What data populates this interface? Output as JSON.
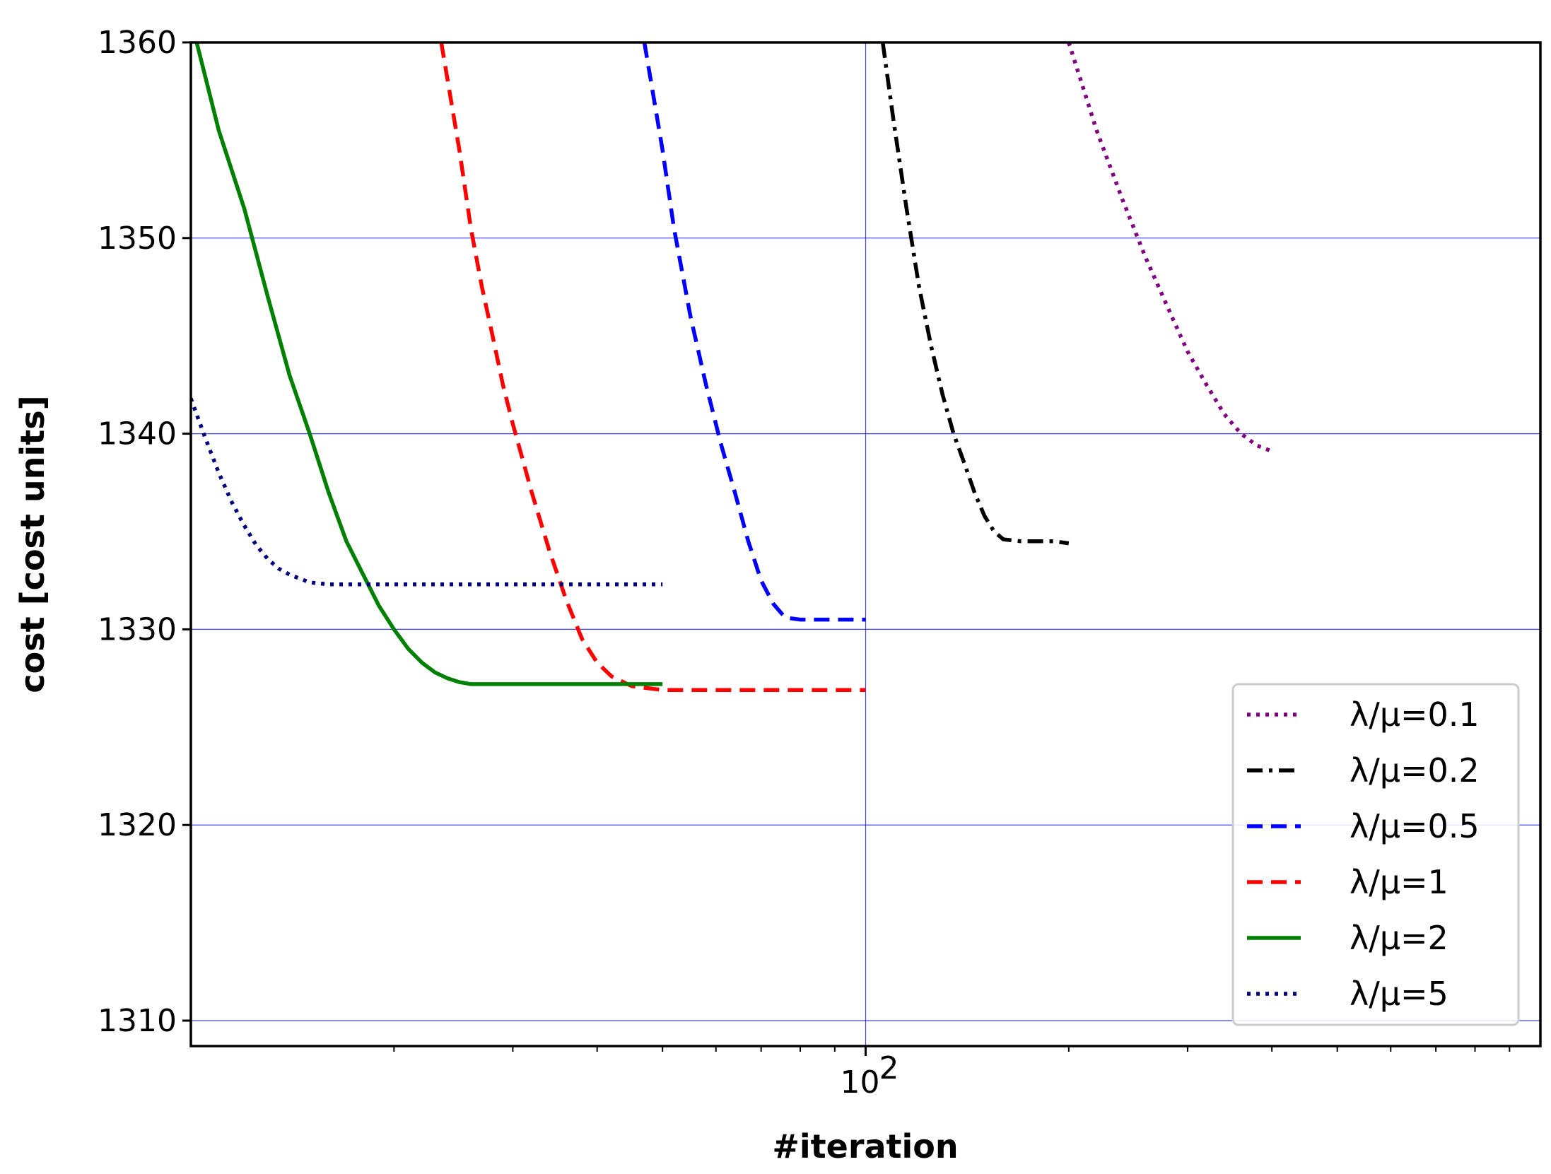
{
  "chart_data": {
    "type": "line",
    "title": "",
    "xlabel": "#iteration",
    "ylabel": "cost [cost units]",
    "xscale": "log",
    "xlim": [
      10,
      1000
    ],
    "ylim": [
      1308.7,
      1360
    ],
    "yticks": [
      1310,
      1320,
      1330,
      1340,
      1350,
      1360
    ],
    "xticks_major": [
      {
        "value": 100,
        "label": "10",
        "exponent": "2"
      }
    ],
    "xticks_minor": [
      20,
      30,
      40,
      50,
      60,
      70,
      80,
      90,
      200,
      300,
      400,
      500,
      600,
      700,
      800,
      900
    ],
    "grid": true,
    "grid_color": "#0000ff",
    "legend_position": "lower right",
    "series": [
      {
        "name": "λ/μ=0.1",
        "color": "#800080",
        "style": "dotted",
        "x": [
          200,
          220,
          240,
          260,
          280,
          300,
          320,
          340,
          360,
          380,
          400
        ],
        "y": [
          1360,
          1355.5,
          1352.0,
          1349.0,
          1346.5,
          1344.2,
          1342.5,
          1341.0,
          1340.0,
          1339.4,
          1339.1
        ]
      },
      {
        "name": "λ/μ=0.2",
        "color": "#000000",
        "style": "dashdot",
        "x": [
          106,
          110,
          115,
          120,
          125,
          130,
          135,
          140,
          145,
          150,
          155,
          160,
          170,
          180,
          190,
          200
        ],
        "y": [
          1360,
          1356.0,
          1351.5,
          1347.5,
          1344.5,
          1342.0,
          1340.0,
          1338.5,
          1337.0,
          1335.8,
          1335.0,
          1334.6,
          1334.5,
          1334.5,
          1334.5,
          1334.4
        ]
      },
      {
        "name": "λ/μ=0.5",
        "color": "#0000ff",
        "style": "dashed",
        "x": [
          47,
          50,
          52,
          55,
          58,
          61,
          64,
          67,
          70,
          73,
          76,
          80,
          85,
          90,
          100
        ],
        "y": [
          1360,
          1354.5,
          1350.5,
          1346.0,
          1342.5,
          1339.5,
          1337.0,
          1334.5,
          1332.5,
          1331.3,
          1330.6,
          1330.5,
          1330.5,
          1330.5,
          1330.5
        ]
      },
      {
        "name": "λ/μ=1",
        "color": "#ff0000",
        "style": "dashed",
        "x": [
          23.5,
          25,
          26,
          27,
          28,
          29,
          30,
          32,
          34,
          36,
          38,
          40,
          42,
          45,
          50,
          60,
          70,
          80,
          100
        ],
        "y": [
          1360,
          1354.5,
          1350.5,
          1347.5,
          1345.0,
          1342.5,
          1340.5,
          1337.0,
          1334.0,
          1331.5,
          1329.5,
          1328.3,
          1327.6,
          1327.1,
          1326.9,
          1326.9,
          1326.9,
          1326.9,
          1326.9
        ]
      },
      {
        "name": "λ/μ=2",
        "color": "#008000",
        "style": "solid",
        "x": [
          10.2,
          11,
          12,
          13,
          14,
          15,
          16,
          17,
          18,
          19,
          20,
          21,
          22,
          23,
          24,
          25,
          26,
          27,
          28,
          30,
          32,
          35,
          40,
          45,
          50
        ],
        "y": [
          1360,
          1355.5,
          1351.5,
          1347.0,
          1343.0,
          1340.0,
          1337.0,
          1334.5,
          1332.8,
          1331.2,
          1330.0,
          1329.0,
          1328.3,
          1327.8,
          1327.5,
          1327.3,
          1327.2,
          1327.2,
          1327.2,
          1327.2,
          1327.2,
          1327.2,
          1327.2,
          1327.2,
          1327.2
        ]
      },
      {
        "name": "λ/μ=5",
        "color": "#000080",
        "style": "dotted",
        "x": [
          10,
          10.5,
          11,
          11.5,
          12,
          12.5,
          13,
          13.5,
          14,
          15,
          16,
          18,
          20,
          25,
          30,
          40,
          50
        ],
        "y": [
          1341.8,
          1339.8,
          1338.0,
          1336.5,
          1335.3,
          1334.3,
          1333.6,
          1333.1,
          1332.8,
          1332.4,
          1332.3,
          1332.3,
          1332.3,
          1332.3,
          1332.3,
          1332.3,
          1332.3
        ]
      }
    ]
  }
}
